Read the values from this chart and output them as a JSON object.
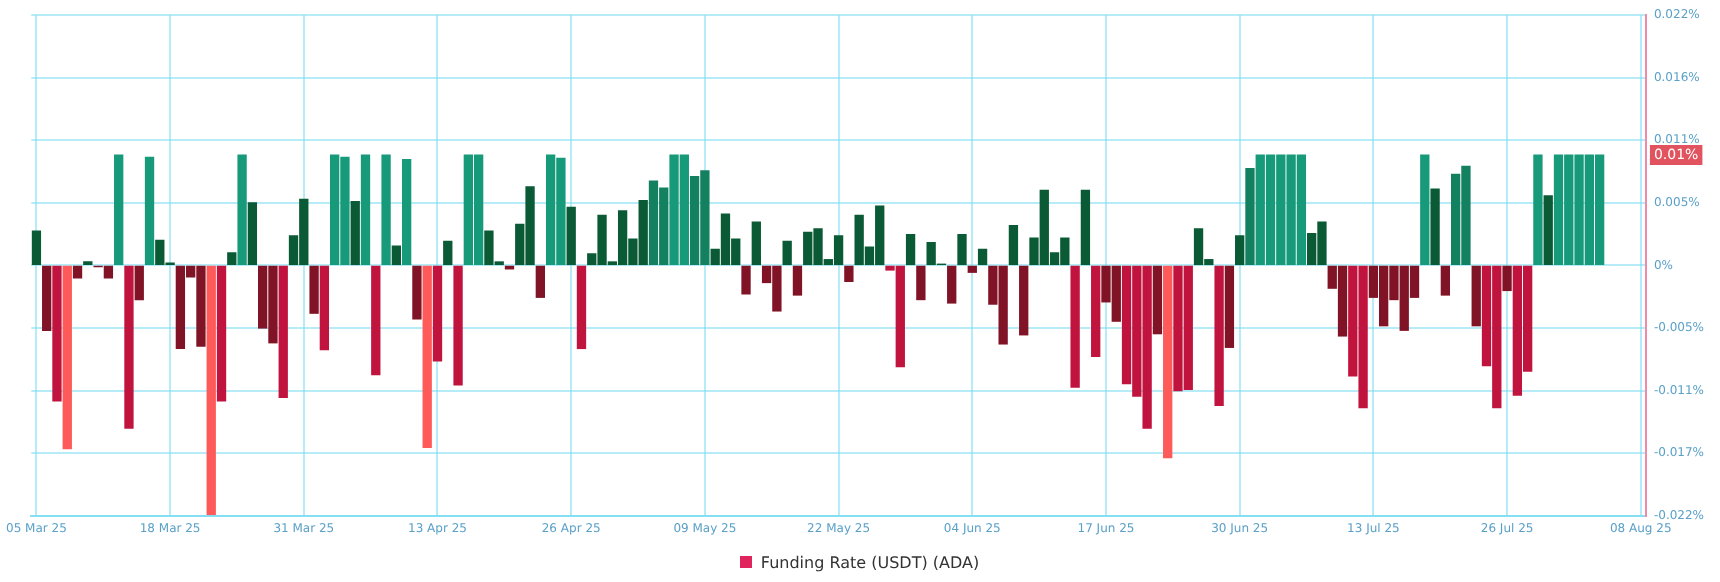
{
  "chart_data": {
    "type": "bar",
    "x": [
      "--03-05",
      "--03-06",
      "--03-07",
      "--03-08",
      "--03-09",
      "--03-10",
      "--03-11",
      "--03-12",
      "--03-13",
      "--03-14",
      "--03-15",
      "--03-16",
      "--03-17",
      "--03-18",
      "--03-19",
      "--03-20",
      "--03-21",
      "--03-22",
      "--03-23",
      "--03-24",
      "--03-25",
      "--03-26",
      "--03-27",
      "--03-28",
      "--03-29",
      "--03-30",
      "--03-31",
      "--04-01",
      "--04-02",
      "--04-03",
      "--04-04",
      "--04-05",
      "--04-06",
      "--04-07",
      "--04-08",
      "--04-09",
      "--04-10",
      "--04-11",
      "--04-12",
      "--04-13",
      "--04-14",
      "--04-15",
      "--04-16",
      "--04-17",
      "--04-18",
      "--04-19",
      "--04-20",
      "--04-21",
      "--04-22",
      "--04-23",
      "--04-24",
      "--04-25",
      "--04-26",
      "--04-27",
      "--04-28",
      "--04-29",
      "--04-30",
      "--05-01",
      "--05-02",
      "--05-03",
      "--05-04",
      "--05-05",
      "--05-06",
      "--05-07",
      "--05-08",
      "--05-09",
      "--05-10",
      "--05-11",
      "--05-12",
      "--05-13",
      "--05-14",
      "--05-15",
      "--05-16",
      "--05-17",
      "--05-18",
      "--05-19",
      "--05-20",
      "--05-21",
      "--05-22",
      "--05-23",
      "--05-24",
      "--05-25",
      "--05-26",
      "--05-27",
      "--05-28",
      "--05-29",
      "--05-30",
      "--05-31",
      "--06-01",
      "--06-02",
      "--06-03",
      "--06-04",
      "--06-05",
      "--06-06",
      "--06-07",
      "--06-08",
      "--06-09",
      "--06-10",
      "--06-11",
      "--06-12",
      "--06-13",
      "--06-14",
      "--06-15",
      "--06-16",
      "--06-17",
      "--06-18",
      "--06-19",
      "--06-20",
      "--06-21",
      "--06-22",
      "--06-23",
      "--06-24",
      "--06-25",
      "--06-26",
      "--06-27",
      "--06-28",
      "--06-29",
      "--06-30",
      "--07-01",
      "--07-02",
      "--07-03",
      "--07-04",
      "--07-05",
      "--07-06",
      "--07-07",
      "--07-08",
      "--07-09",
      "--07-10",
      "--07-11",
      "--07-12",
      "--07-13",
      "--07-14",
      "--07-15",
      "--07-16",
      "--07-17",
      "--07-18",
      "--07-19",
      "--07-20",
      "--07-21",
      "--07-22",
      "--07-23",
      "--07-24",
      "--07-25",
      "--07-26",
      "--07-27",
      "--07-28",
      "--07-29",
      "--07-30",
      "--07-31",
      "--08-01",
      "--08-02",
      "--08-03",
      "--08-04"
    ],
    "series": [
      {
        "name": "Funding Rate (USDT) (ADA)",
        "color": "#e0245e",
        "values": [
          0.003,
          -0.0057,
          -0.0119,
          -0.0161,
          -0.0011,
          0.0003,
          -0.0001,
          -0.0011,
          0.0097,
          -0.0143,
          -0.003,
          0.0095,
          0.0022,
          0.0002,
          -0.0073,
          -0.001,
          -0.0071,
          -0.0219,
          -0.0119,
          0.0011,
          0.0097,
          0.0055,
          -0.0055,
          -0.0068,
          -0.0116,
          0.0026,
          0.0058,
          -0.0042,
          -0.0074,
          0.0097,
          0.0095,
          0.0056,
          0.0097,
          -0.0096,
          0.0097,
          0.0017,
          0.0093,
          -0.0047,
          -0.016,
          -0.0084,
          0.0021,
          -0.0105,
          0.0097,
          0.0097,
          0.003,
          0.0003,
          -0.0003,
          0.0036,
          0.0069,
          -0.0028,
          0.0097,
          0.0094,
          0.0051,
          -0.0073,
          0.001,
          0.0044,
          0.0003,
          0.0048,
          0.0023,
          0.0057,
          0.0074,
          0.0068,
          0.0097,
          0.0097,
          0.0078,
          0.0083,
          0.0014,
          0.0045,
          0.0023,
          -0.0025,
          0.0038,
          -0.0015,
          -0.004,
          0.0021,
          -0.0026,
          0.0029,
          0.0032,
          0.0005,
          0.0026,
          -0.0014,
          0.0044,
          0.0016,
          0.0052,
          -0.0004,
          -0.0089,
          0.0027,
          -0.003,
          0.002,
          0.0001,
          -0.0033,
          0.0027,
          -0.0006,
          0.0014,
          -0.0034,
          -0.0069,
          0.0035,
          -0.0061,
          0.0024,
          0.0066,
          0.0011,
          0.0024,
          -0.0107,
          0.0066,
          -0.008,
          -0.0032,
          -0.0049,
          -0.0104,
          -0.0115,
          -0.0143,
          -0.006,
          -0.0169,
          -0.011,
          -0.0109,
          0.0032,
          0.0005,
          -0.0123,
          -0.0072,
          0.0026,
          0.0085,
          0.0097,
          0.0097,
          0.0097,
          0.0097,
          0.0097,
          0.0028,
          0.0038,
          -0.002,
          -0.0062,
          -0.0097,
          -0.0125,
          -0.0028,
          -0.0053,
          -0.003,
          -0.0057,
          -0.0028,
          0.0097,
          0.0067,
          -0.0026,
          0.008,
          0.0087,
          -0.0053,
          -0.0088,
          -0.0125,
          -0.0022,
          -0.0114,
          -0.0093,
          0.0097,
          0.0061,
          0.0097,
          0.0097,
          0.0097,
          0.0097,
          0.0097
        ],
        "colors": [
          "#0b5a36",
          "#801426",
          "#c0143e",
          "#ff5a5a",
          "#801426",
          "#0b5a36",
          "#801426",
          "#801426",
          "#169a7a",
          "#c0143e",
          "#801426",
          "#169a7a",
          "#0b5a36",
          "#0b5a36",
          "#801426",
          "#801426",
          "#801426",
          "#ff5a5a",
          "#c0143e",
          "#0b5a36",
          "#169a7a",
          "#0b5a36",
          "#801426",
          "#801426",
          "#c0143e",
          "#0b5a36",
          "#0b5a36",
          "#801426",
          "#c0143e",
          "#169a7a",
          "#169a7a",
          "#0b5a36",
          "#169a7a",
          "#c0143e",
          "#169a7a",
          "#0b5a36",
          "#169a7a",
          "#801426",
          "#ff5a5a",
          "#c0143e",
          "#0b5a36",
          "#c0143e",
          "#169a7a",
          "#169a7a",
          "#0b5a36",
          "#0b5a36",
          "#801426",
          "#0b5a36",
          "#0b5a36",
          "#801426",
          "#169a7a",
          "#169a7a",
          "#0b5a36",
          "#c0143e",
          "#0b5a36",
          "#0b5a36",
          "#0b5a36",
          "#0b5a36",
          "#0b5a36",
          "#0b5a36",
          "#138060",
          "#138060",
          "#169a7a",
          "#169a7a",
          "#138060",
          "#138060",
          "#0b5a36",
          "#0b5a36",
          "#0b5a36",
          "#801426",
          "#0b5a36",
          "#801426",
          "#801426",
          "#0b5a36",
          "#801426",
          "#0b5a36",
          "#0b5a36",
          "#0b5a36",
          "#0b5a36",
          "#801426",
          "#0b5a36",
          "#0b5a36",
          "#0b5a36",
          "#c0143e",
          "#c0143e",
          "#0b5a36",
          "#801426",
          "#0b5a36",
          "#0b5a36",
          "#801426",
          "#0b5a36",
          "#801426",
          "#0b5a36",
          "#801426",
          "#801426",
          "#0b5a36",
          "#801426",
          "#0b5a36",
          "#0b5a36",
          "#0b5a36",
          "#0b5a36",
          "#c0143e",
          "#0b5a36",
          "#c0143e",
          "#801426",
          "#801426",
          "#c0143e",
          "#c0143e",
          "#c0143e",
          "#801426",
          "#ff5a5a",
          "#c0143e",
          "#c0143e",
          "#0b5a36",
          "#0b5a36",
          "#c0143e",
          "#801426",
          "#0b5a36",
          "#138060",
          "#169a7a",
          "#169a7a",
          "#169a7a",
          "#169a7a",
          "#169a7a",
          "#0b5a36",
          "#0b5a36",
          "#801426",
          "#801426",
          "#c0143e",
          "#c0143e",
          "#801426",
          "#801426",
          "#801426",
          "#801426",
          "#801426",
          "#169a7a",
          "#0b5a36",
          "#801426",
          "#138060",
          "#138060",
          "#801426",
          "#c0143e",
          "#c0143e",
          "#801426",
          "#c0143e",
          "#c0143e",
          "#169a7a",
          "#0b5a36",
          "#169a7a",
          "#169a7a",
          "#169a7a",
          "#169a7a",
          "#169a7a"
        ]
      }
    ],
    "xlim": [
      "--03-04T12:00",
      "--08-08T12:00"
    ],
    "xticks": [
      {
        "value": "--03-05",
        "label": "05 Mar 25"
      },
      {
        "value": "--03-18",
        "label": "18 Mar 25"
      },
      {
        "value": "--03-31",
        "label": "31 Mar 25"
      },
      {
        "value": "--04-13",
        "label": "13 Apr 25"
      },
      {
        "value": "--04-26",
        "label": "26 Apr 25"
      },
      {
        "value": "--05-09",
        "label": "09 May 25"
      },
      {
        "value": "--05-22",
        "label": "22 May 25"
      },
      {
        "value": "--06-04",
        "label": "04 Jun 25"
      },
      {
        "value": "--06-17",
        "label": "17 Jun 25"
      },
      {
        "value": "--06-30",
        "label": "30 Jun 25"
      },
      {
        "value": "--07-13",
        "label": "13 Jul 25"
      },
      {
        "value": "--07-26",
        "label": "26 Jul 25"
      },
      {
        "value": "--08-08",
        "label": "08 Aug 25"
      }
    ],
    "ylim": [
      -0.022,
      0.022
    ],
    "yticks": [
      {
        "value": -0.022,
        "label": "-0.022%"
      },
      {
        "value": -0.0165,
        "label": "-0.017%"
      },
      {
        "value": -0.011,
        "label": "-0.011%"
      },
      {
        "value": -0.0055,
        "label": "-0.005%"
      },
      {
        "value": 0,
        "label": "0%"
      },
      {
        "value": 0.0055,
        "label": "0.005%"
      },
      {
        "value": 0.011,
        "label": "0.011%"
      },
      {
        "value": 0.0165,
        "label": "0.016%"
      },
      {
        "value": 0.022,
        "label": "0.022%"
      }
    ],
    "annotations": [
      "0.01%"
    ],
    "grid": true,
    "legend": "bottom"
  }
}
